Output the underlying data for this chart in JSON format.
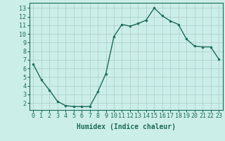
{
  "x": [
    0,
    1,
    2,
    3,
    4,
    5,
    6,
    7,
    8,
    9,
    10,
    11,
    12,
    13,
    14,
    15,
    16,
    17,
    18,
    19,
    20,
    21,
    22,
    23
  ],
  "y": [
    6.5,
    4.7,
    3.5,
    2.2,
    1.7,
    1.6,
    1.6,
    1.6,
    3.3,
    5.4,
    9.7,
    11.1,
    10.9,
    11.2,
    11.6,
    13.0,
    12.1,
    11.5,
    11.1,
    9.4,
    8.6,
    8.5,
    8.5,
    7.1
  ],
  "line_color": "#1a6b5a",
  "marker": "o",
  "marker_size": 2.0,
  "line_width": 1.0,
  "background_color": "#cceee8",
  "grid_color": "#aacccc",
  "xlabel": "Humidex (Indice chaleur)",
  "xlabel_fontsize": 7,
  "tick_fontsize": 6,
  "xlim": [
    -0.5,
    23.5
  ],
  "ylim": [
    1.2,
    13.6
  ],
  "yticks": [
    2,
    3,
    4,
    5,
    6,
    7,
    8,
    9,
    10,
    11,
    12,
    13
  ],
  "xticks": [
    0,
    1,
    2,
    3,
    4,
    5,
    6,
    7,
    8,
    9,
    10,
    11,
    12,
    13,
    14,
    15,
    16,
    17,
    18,
    19,
    20,
    21,
    22,
    23
  ]
}
